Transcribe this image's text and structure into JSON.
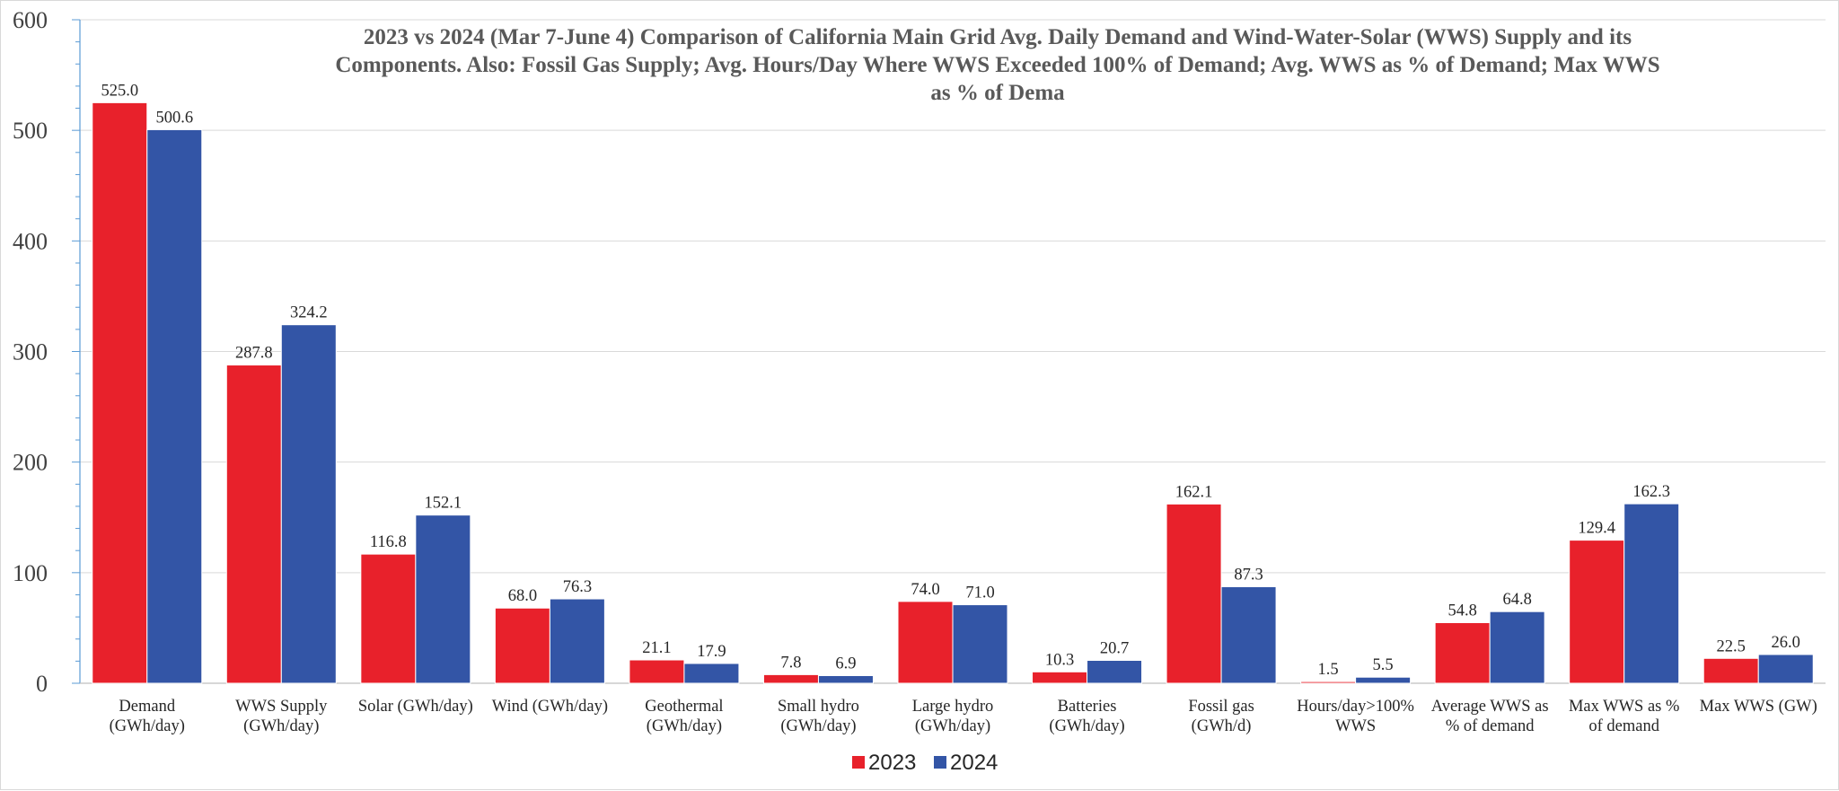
{
  "chart_data": {
    "type": "bar",
    "title_lines": [
      "2023 vs 2024 (Mar 7-June 4) Comparison of California Main Grid Avg. Daily Demand and Wind-Water-Solar (WWS) Supply and its",
      "Components. Also: Fossil Gas Supply; Avg. Hours/Day Where WWS Exceeded 100% of Demand; Avg. WWS as % of Demand; Max WWS",
      "as % of Dema"
    ],
    "categories": [
      [
        "Demand",
        "(GWh/day)"
      ],
      [
        "WWS Supply",
        "(GWh/day)"
      ],
      [
        "Solar (GWh/day)"
      ],
      [
        "Wind (GWh/day)"
      ],
      [
        "Geothermal",
        "(GWh/day)"
      ],
      [
        "Small hydro",
        "(GWh/day)"
      ],
      [
        "Large hydro",
        "(GWh/day)"
      ],
      [
        "Batteries",
        "(GWh/day)"
      ],
      [
        "Fossil gas",
        "(GWh/d)"
      ],
      [
        "Hours/day>100%",
        "WWS"
      ],
      [
        "Average  WWS as",
        "% of demand"
      ],
      [
        "Max WWS as %",
        "of demand"
      ],
      [
        "Max WWS (GW)"
      ]
    ],
    "series": [
      {
        "name": "2023",
        "color": "#e8212b",
        "values": [
          525.0,
          287.8,
          116.8,
          68.0,
          21.1,
          7.8,
          74.0,
          10.3,
          162.1,
          1.5,
          54.8,
          129.4,
          22.5
        ],
        "labels": [
          "525.0",
          "287.8",
          "116.8",
          "68.0",
          "21.1",
          "7.8",
          "74.0",
          "10.3",
          "162.1",
          "1.5",
          "54.8",
          "129.4",
          "22.5"
        ]
      },
      {
        "name": "2024",
        "color": "#3355a6",
        "values": [
          500.6,
          324.2,
          152.1,
          76.3,
          17.9,
          6.9,
          71.0,
          20.7,
          87.3,
          5.5,
          64.8,
          162.3,
          26.0
        ],
        "labels": [
          "500.6",
          "324.2",
          "152.1",
          "76.3",
          "17.9",
          "6.9",
          "71.0",
          "20.7",
          "87.3",
          "5.5",
          "64.8",
          "162.3",
          "26.0"
        ]
      }
    ],
    "y_ticks": [
      "0",
      "100",
      "200",
      "300",
      "400",
      "500",
      "600"
    ],
    "ylim": [
      0,
      600
    ],
    "grid": true,
    "legend": "bottom-center",
    "xlabel": "",
    "ylabel": ""
  }
}
